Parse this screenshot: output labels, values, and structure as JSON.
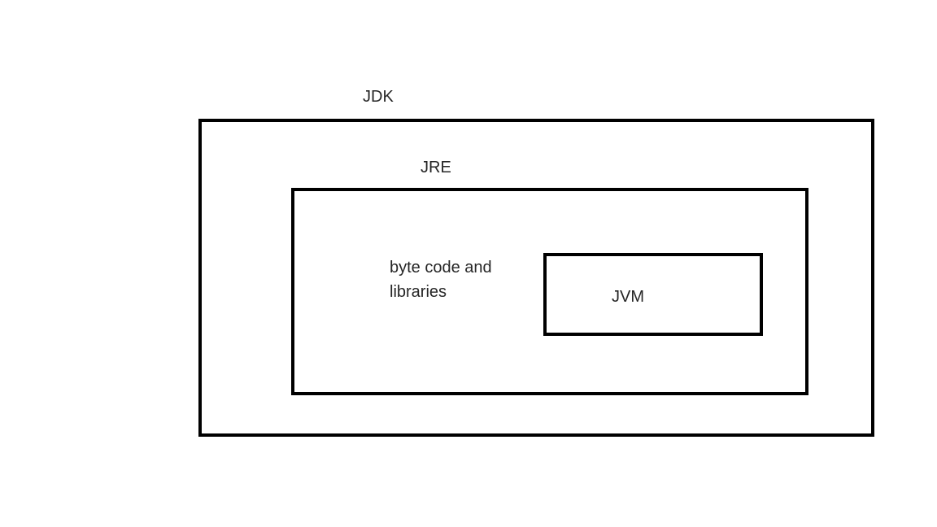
{
  "diagram": {
    "jdk": {
      "label": "JDK"
    },
    "jre": {
      "label": "JRE"
    },
    "jvm": {
      "label": "JVM"
    },
    "bytecode": {
      "line1": "byte code and",
      "line2": "libraries"
    }
  }
}
